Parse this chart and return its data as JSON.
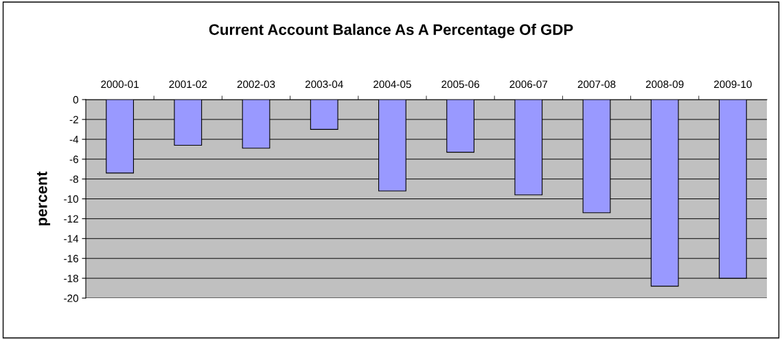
{
  "chart_data": {
    "type": "bar",
    "title": "Current Account Balance As A Percentage Of GDP",
    "ylabel": "percent",
    "categories": [
      "2000-01",
      "2001-02",
      "2002-03",
      "2003-04",
      "2004-05",
      "2005-06",
      "2006-07",
      "2007-08",
      "2008-09",
      "2009-10"
    ],
    "values": [
      -7.4,
      -4.6,
      -4.9,
      -3.0,
      -9.2,
      -5.3,
      -9.6,
      -11.4,
      -18.8,
      -18.0
    ],
    "color": "#9999ff",
    "ylim": [
      -20,
      0
    ],
    "yticks": [
      -20,
      -18,
      -16,
      -14,
      -12,
      -10,
      -8,
      -6,
      -4,
      -2,
      0
    ],
    "grid": "y",
    "legend": false
  }
}
